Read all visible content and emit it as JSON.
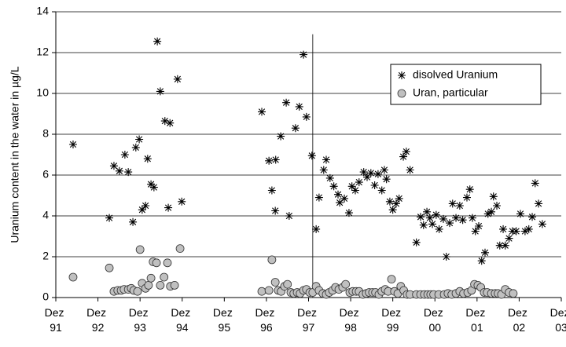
{
  "chart_data": {
    "type": "scatter",
    "y_label": "Uranium content in the water in µg/L",
    "xlim": [
      1992,
      2004
    ],
    "ylim": [
      0,
      14
    ],
    "xticks": [
      {
        "value": 1992,
        "label": "Dez 91"
      },
      {
        "value": 1993,
        "label": "Dez 92"
      },
      {
        "value": 1994,
        "label": "Dez 93"
      },
      {
        "value": 1995,
        "label": "Dez 94"
      },
      {
        "value": 1996,
        "label": "Dez 95"
      },
      {
        "value": 1997,
        "label": "Dez 96"
      },
      {
        "value": 1998,
        "label": "Dez 97"
      },
      {
        "value": 1999,
        "label": "Dez 98"
      },
      {
        "value": 2000,
        "label": "Dez 99"
      },
      {
        "value": 2001,
        "label": "Dez 00"
      },
      {
        "value": 2002,
        "label": "Dez 01"
      },
      {
        "value": 2003,
        "label": "Dez 02"
      },
      {
        "value": 2004,
        "label": "Dez 03"
      }
    ],
    "yticks": [
      0,
      2,
      4,
      6,
      8,
      10,
      12,
      14
    ],
    "grid": true,
    "legend": "upper right",
    "vline": 1998.1,
    "series": [
      {
        "name": "disolved Uranium",
        "marker": "asterisk",
        "color": "#000000",
        "x": [
          1992.41,
          1993.27,
          1993.38,
          1993.51,
          1993.64,
          1993.72,
          1993.83,
          1993.9,
          1993.98,
          1994.05,
          1994.13,
          1994.18,
          1994.26,
          1994.33,
          1994.41,
          1994.48,
          1994.59,
          1994.71,
          1994.67,
          1994.89,
          1994.99,
          1996.89,
          1997.06,
          1997.13,
          1997.22,
          1997.21,
          1997.34,
          1997.47,
          1997.54,
          1997.69,
          1997.78,
          1997.88,
          1997.95,
          1998.08,
          1998.18,
          1998.25,
          1998.36,
          1998.42,
          1998.51,
          1998.6,
          1998.7,
          1998.74,
          1998.85,
          1998.96,
          1999.03,
          1999.11,
          1999.2,
          1999.31,
          1999.39,
          1999.48,
          1999.57,
          1999.65,
          1999.74,
          1999.8,
          1999.85,
          1999.93,
          2000.0,
          2000.08,
          2000.15,
          2000.25,
          2000.32,
          2000.41,
          2000.56,
          2000.66,
          2000.73,
          2000.81,
          2000.88,
          2000.94,
          2001.03,
          2001.1,
          2001.2,
          2001.27,
          2001.35,
          2001.42,
          2001.5,
          2001.59,
          2001.66,
          2001.76,
          2001.83,
          2001.89,
          2001.96,
          2002.04,
          2002.11,
          2002.19,
          2002.26,
          2002.34,
          2002.39,
          2002.47,
          2002.54,
          2002.62,
          2002.67,
          2002.76,
          2002.84,
          2002.93,
          2003.03,
          2003.14,
          2003.23,
          2003.31,
          2003.38,
          2003.46,
          2003.55
        ],
        "values": [
          7.5,
          3.9,
          6.45,
          6.2,
          7.0,
          6.15,
          3.7,
          7.35,
          7.75,
          4.3,
          4.5,
          6.8,
          5.55,
          5.4,
          12.55,
          10.1,
          8.65,
          8.55,
          4.4,
          10.7,
          4.7,
          9.1,
          6.7,
          5.25,
          6.75,
          4.25,
          7.9,
          9.55,
          4.0,
          8.3,
          9.35,
          11.9,
          8.85,
          6.95,
          3.35,
          4.9,
          6.25,
          6.75,
          5.85,
          5.45,
          5.05,
          4.65,
          4.85,
          4.15,
          5.45,
          5.25,
          5.65,
          6.15,
          5.9,
          6.1,
          5.5,
          6.05,
          5.25,
          6.25,
          5.8,
          4.7,
          4.3,
          4.6,
          4.85,
          6.9,
          7.15,
          6.25,
          2.7,
          3.95,
          3.55,
          4.2,
          3.9,
          3.6,
          4.05,
          3.35,
          3.85,
          2.0,
          3.65,
          4.6,
          3.9,
          4.5,
          3.8,
          4.9,
          5.3,
          3.9,
          3.25,
          3.5,
          1.8,
          2.2,
          4.1,
          4.2,
          4.95,
          4.5,
          2.55,
          3.35,
          2.55,
          2.9,
          3.25,
          3.25,
          4.1,
          3.25,
          3.35,
          3.95,
          5.6,
          4.6,
          3.6
        ]
      },
      {
        "name": "Uran, particular",
        "marker": "circle",
        "color": "#c0c0c0",
        "x": [
          1992.41,
          1993.27,
          1993.38,
          1993.47,
          1993.55,
          1993.62,
          1993.72,
          1993.79,
          1993.85,
          1993.94,
          1994.0,
          1994.05,
          1994.13,
          1994.2,
          1994.26,
          1994.31,
          1994.39,
          1994.48,
          1994.57,
          1994.65,
          1994.72,
          1994.82,
          1994.95,
          1996.89,
          1997.06,
          1997.13,
          1997.21,
          1997.28,
          1997.35,
          1997.43,
          1997.5,
          1997.58,
          1997.65,
          1997.73,
          1997.8,
          1997.88,
          1997.95,
          1998.03,
          1998.1,
          1998.18,
          1998.25,
          1998.34,
          1998.42,
          1998.49,
          1998.57,
          1998.64,
          1998.72,
          1998.81,
          1998.88,
          1998.98,
          1999.05,
          1999.13,
          1999.2,
          1999.29,
          1999.37,
          1999.44,
          1999.52,
          1999.59,
          1999.67,
          1999.74,
          1999.82,
          1999.89,
          1999.97,
          2000.04,
          2000.12,
          2000.19,
          2000.26,
          2000.34,
          2000.41,
          2000.56,
          2000.66,
          2000.75,
          2000.83,
          2000.9,
          2000.97,
          2001.09,
          2001.22,
          2001.31,
          2001.4,
          2001.5,
          2001.59,
          2001.68,
          2001.78,
          2001.87,
          2001.94,
          2002.02,
          2002.09,
          2002.17,
          2002.24,
          2002.34,
          2002.43,
          2002.5,
          2002.58,
          2002.67,
          2002.76,
          2002.86
        ],
        "values": [
          1.0,
          1.45,
          0.3,
          0.35,
          0.35,
          0.4,
          0.4,
          0.45,
          0.35,
          0.3,
          2.35,
          0.7,
          0.45,
          0.6,
          0.95,
          1.75,
          1.7,
          0.6,
          1.0,
          1.7,
          0.55,
          0.6,
          2.4,
          0.3,
          0.35,
          1.85,
          0.75,
          0.35,
          0.3,
          0.55,
          0.65,
          0.25,
          0.2,
          0.25,
          0.2,
          0.35,
          0.4,
          0.25,
          0.25,
          0.55,
          0.35,
          0.2,
          0.15,
          0.25,
          0.35,
          0.5,
          0.4,
          0.5,
          0.65,
          0.25,
          0.3,
          0.3,
          0.3,
          0.15,
          0.2,
          0.25,
          0.25,
          0.25,
          0.15,
          0.3,
          0.4,
          0.3,
          0.9,
          0.3,
          0.2,
          0.55,
          0.35,
          0.15,
          0.15,
          0.15,
          0.15,
          0.15,
          0.15,
          0.15,
          0.15,
          0.15,
          0.15,
          0.2,
          0.15,
          0.2,
          0.3,
          0.2,
          0.25,
          0.35,
          0.65,
          0.6,
          0.5,
          0.25,
          0.25,
          0.2,
          0.2,
          0.2,
          0.15,
          0.4,
          0.25,
          0.2
        ]
      }
    ]
  }
}
